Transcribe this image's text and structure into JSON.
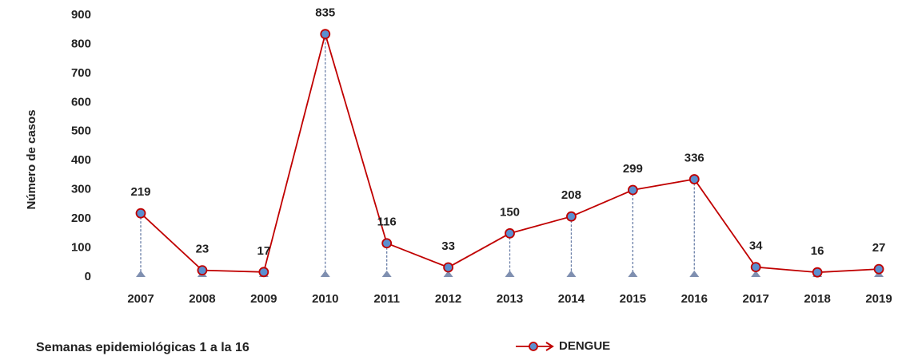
{
  "chart_data": {
    "type": "line",
    "y_label": "Número de casos",
    "annotation": "Semanas epidemiológicas 1 a la 16",
    "categories": [
      "2007",
      "2008",
      "2009",
      "2010",
      "2011",
      "2012",
      "2013",
      "2014",
      "2015",
      "2016",
      "2017",
      "2018",
      "2019"
    ],
    "series": [
      {
        "name": "DENGUE",
        "color": "#c00000",
        "marker_color": "#5b8fd0",
        "values": [
          219,
          23,
          17,
          835,
          116,
          33,
          150,
          208,
          299,
          336,
          34,
          16,
          27
        ]
      }
    ],
    "ylim": [
      0,
      900
    ],
    "yticks": [
      0,
      100,
      200,
      300,
      400,
      500,
      600,
      700,
      800,
      900
    ],
    "drop_lines": true,
    "legend": "bottom"
  }
}
